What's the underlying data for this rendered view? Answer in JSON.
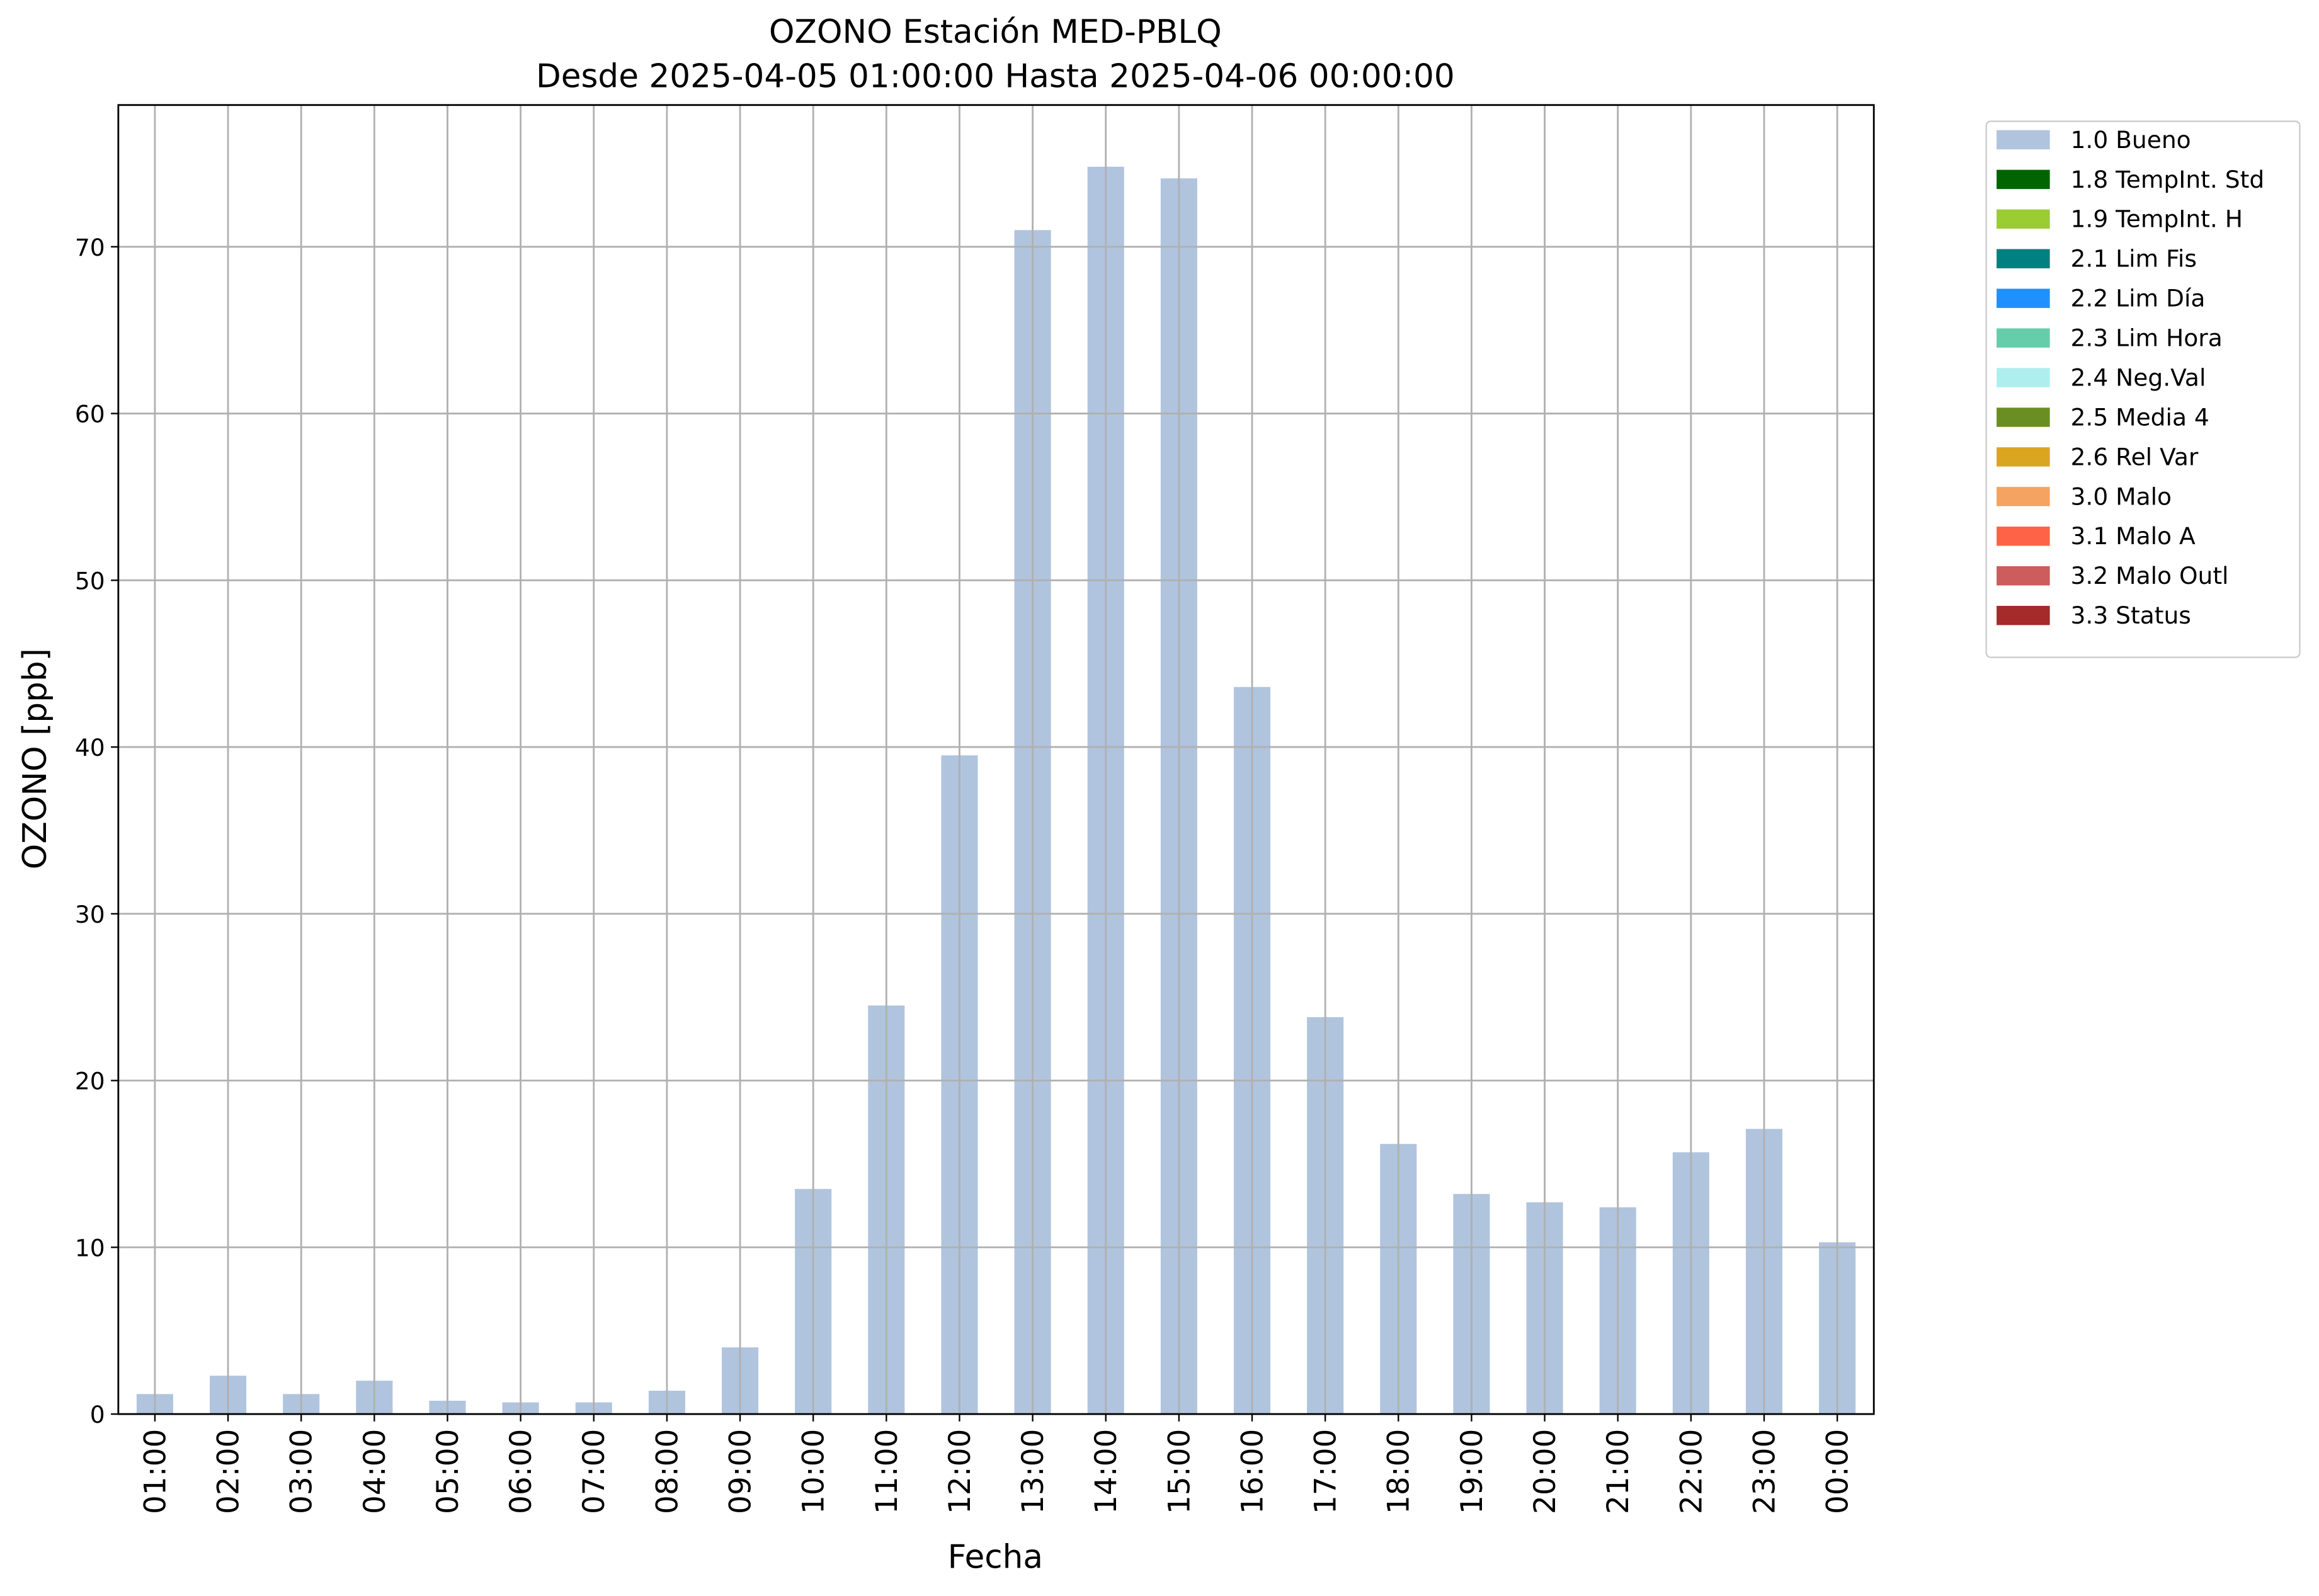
{
  "chart_data": {
    "type": "bar",
    "title": "OZONO Estación MED-PBLQ",
    "subtitle": "Desde 2025-04-05 01:00:00 Hasta 2025-04-06 00:00:00",
    "x_label": "Fecha",
    "y_label": "OZONO [ppb]",
    "categories": [
      "01:00",
      "02:00",
      "03:00",
      "04:00",
      "05:00",
      "06:00",
      "07:00",
      "08:00",
      "09:00",
      "10:00",
      "11:00",
      "12:00",
      "13:00",
      "14:00",
      "15:00",
      "16:00",
      "17:00",
      "18:00",
      "19:00",
      "20:00",
      "21:00",
      "22:00",
      "23:00",
      "00:00"
    ],
    "series": [
      {
        "name": "1.0 Bueno",
        "color": "#b0c4de",
        "values": [
          1.2,
          2.3,
          1.2,
          2.0,
          0.8,
          0.7,
          0.7,
          1.4,
          4.0,
          13.5,
          24.5,
          39.5,
          71.0,
          74.8,
          74.1,
          43.6,
          23.8,
          16.2,
          13.2,
          12.7,
          12.4,
          15.7,
          17.1,
          10.3
        ]
      },
      {
        "name": "1.8 TempInt. Std",
        "color": "#006400",
        "values": [
          null,
          null,
          null,
          null,
          null,
          null,
          null,
          null,
          null,
          null,
          null,
          null,
          null,
          null,
          null,
          null,
          null,
          null,
          null,
          null,
          null,
          null,
          null,
          null
        ]
      },
      {
        "name": "1.9 TempInt. H",
        "color": "#9acd32",
        "values": [
          null,
          null,
          null,
          null,
          null,
          null,
          null,
          null,
          null,
          null,
          null,
          null,
          null,
          null,
          null,
          null,
          null,
          null,
          null,
          null,
          null,
          null,
          null,
          null
        ]
      },
      {
        "name": "2.1 Lim Fis",
        "color": "#008080",
        "values": [
          null,
          null,
          null,
          null,
          null,
          null,
          null,
          null,
          null,
          null,
          null,
          null,
          null,
          null,
          null,
          null,
          null,
          null,
          null,
          null,
          null,
          null,
          null,
          null
        ]
      },
      {
        "name": "2.2 Lim Día",
        "color": "#1e90ff",
        "values": [
          null,
          null,
          null,
          null,
          null,
          null,
          null,
          null,
          null,
          null,
          null,
          null,
          null,
          null,
          null,
          null,
          null,
          null,
          null,
          null,
          null,
          null,
          null,
          null
        ]
      },
      {
        "name": "2.3 Lim Hora",
        "color": "#66cdaa",
        "values": [
          null,
          null,
          null,
          null,
          null,
          null,
          null,
          null,
          null,
          null,
          null,
          null,
          null,
          null,
          null,
          null,
          null,
          null,
          null,
          null,
          null,
          null,
          null,
          null
        ]
      },
      {
        "name": "2.4 Neg.Val",
        "color": "#afeeee",
        "values": [
          null,
          null,
          null,
          null,
          null,
          null,
          null,
          null,
          null,
          null,
          null,
          null,
          null,
          null,
          null,
          null,
          null,
          null,
          null,
          null,
          null,
          null,
          null,
          null
        ]
      },
      {
        "name": "2.5 Media 4",
        "color": "#6b8e23",
        "values": [
          null,
          null,
          null,
          null,
          null,
          null,
          null,
          null,
          null,
          null,
          null,
          null,
          null,
          null,
          null,
          null,
          null,
          null,
          null,
          null,
          null,
          null,
          null,
          null
        ]
      },
      {
        "name": "2.6 Rel Var",
        "color": "#daa520",
        "values": [
          null,
          null,
          null,
          null,
          null,
          null,
          null,
          null,
          null,
          null,
          null,
          null,
          null,
          null,
          null,
          null,
          null,
          null,
          null,
          null,
          null,
          null,
          null,
          null
        ]
      },
      {
        "name": "3.0 Malo",
        "color": "#f4a460",
        "values": [
          null,
          null,
          null,
          null,
          null,
          null,
          null,
          null,
          null,
          null,
          null,
          null,
          null,
          null,
          null,
          null,
          null,
          null,
          null,
          null,
          null,
          null,
          null,
          null
        ]
      },
      {
        "name": "3.1 Malo A",
        "color": "#ff6347",
        "values": [
          null,
          null,
          null,
          null,
          null,
          null,
          null,
          null,
          null,
          null,
          null,
          null,
          null,
          null,
          null,
          null,
          null,
          null,
          null,
          null,
          null,
          null,
          null,
          null
        ]
      },
      {
        "name": "3.2 Malo Outl",
        "color": "#cd5c5c",
        "values": [
          null,
          null,
          null,
          null,
          null,
          null,
          null,
          null,
          null,
          null,
          null,
          null,
          null,
          null,
          null,
          null,
          null,
          null,
          null,
          null,
          null,
          null,
          null,
          null
        ]
      },
      {
        "name": "3.3 Status",
        "color": "#a52a2a",
        "values": [
          null,
          null,
          null,
          null,
          null,
          null,
          null,
          null,
          null,
          null,
          null,
          null,
          null,
          null,
          null,
          null,
          null,
          null,
          null,
          null,
          null,
          null,
          null,
          null
        ]
      }
    ],
    "ylim": [
      0,
      78.5
    ],
    "yticks": [
      0,
      10,
      20,
      30,
      40,
      50,
      60,
      70
    ],
    "grid": true,
    "stacked": true,
    "legend": "outside upper right"
  }
}
